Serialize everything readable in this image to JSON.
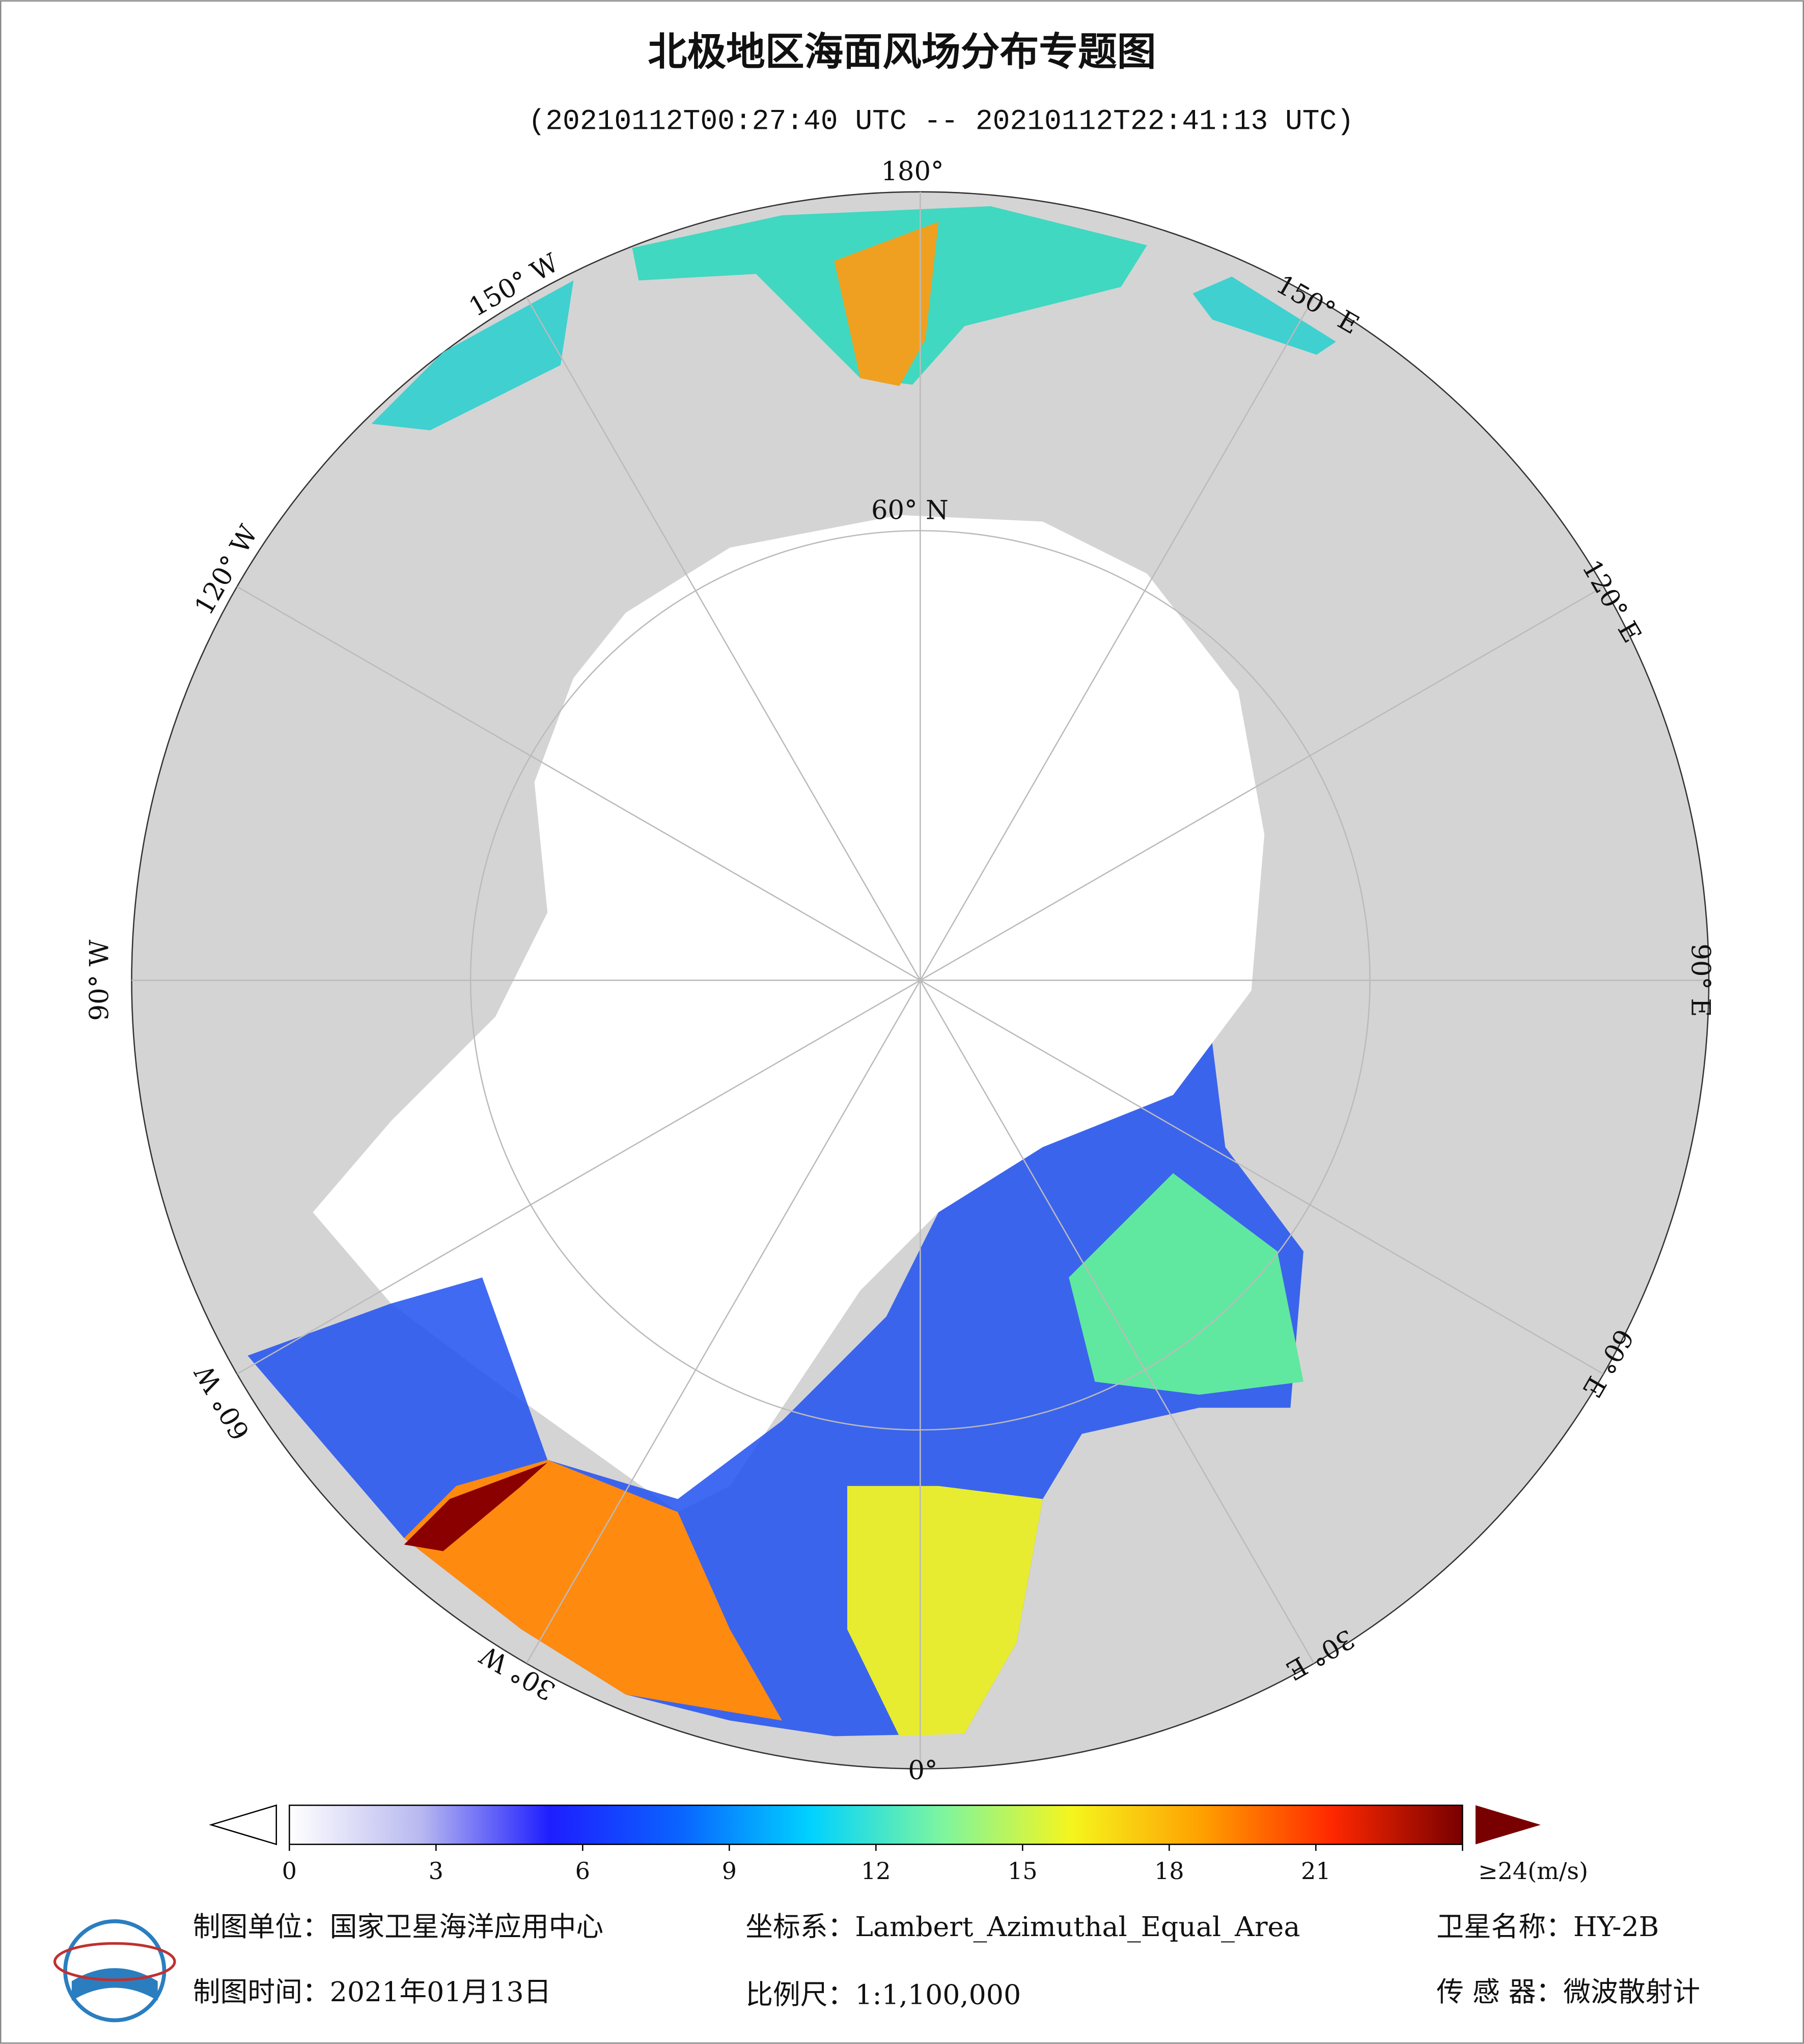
{
  "title": "北极地区海面风场分布专题图",
  "subtitle": "(20210112T00:27:40 UTC -- 20210112T22:41:13 UTC)",
  "map": {
    "labels": [
      "180°",
      "150° W",
      "150° E",
      "120° W",
      "120° E",
      "90° W",
      "90° E",
      "60° W",
      "60° E",
      "30° W",
      "30° E",
      "0°",
      "60° N"
    ]
  },
  "colorbar": {
    "lim": [
      0,
      24
    ],
    "ticks": [
      0,
      3,
      6,
      9,
      12,
      15,
      18,
      21,
      {
        "value": 24,
        "label": "≥24(m/s)"
      }
    ],
    "colors": [
      "#ffffff",
      "#b9b9f0",
      "#1e1eff",
      "#0a64ff",
      "#00d2ff",
      "#7cf5a0",
      "#f5f51e",
      "#ffa000",
      "#ff2800",
      "#780000"
    ]
  },
  "footer": {
    "unit": "制图单位：国家卫星海洋应用中心",
    "projection": "坐标系：Lambert_Azimuthal_Equal_Area",
    "satellite": "卫星名称：HY-2B",
    "date": "制图时间：2021年01月13日",
    "scale": "比例尺：1:1,100,000",
    "sensor": "传 感 器：微波散射计"
  }
}
